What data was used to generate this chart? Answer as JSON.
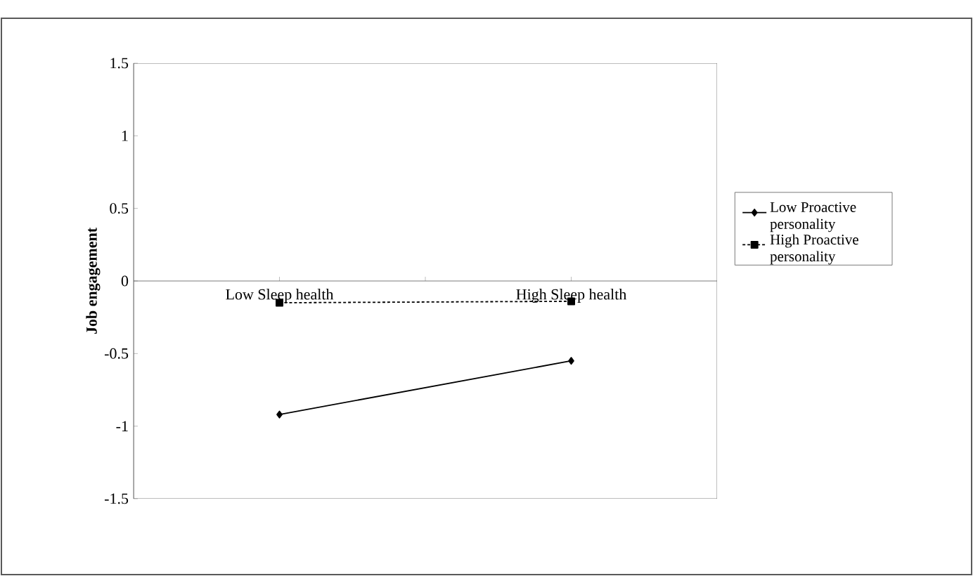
{
  "chart_data": {
    "type": "line",
    "ylabel": "Job engagement",
    "categories": [
      "Low Sleep health",
      "High Sleep health"
    ],
    "series": [
      {
        "name": "Low Proactive personality",
        "color": "#000000",
        "marker": "diamond",
        "line_style": "solid",
        "values": [
          -0.92,
          -0.55
        ]
      },
      {
        "name": "High Proactive personality",
        "color": "#000000",
        "marker": "square",
        "line_style": "dashed",
        "values": [
          -0.15,
          -0.14
        ]
      }
    ],
    "ylim": [
      -1.5,
      1.5
    ],
    "yticks": [
      -1.5,
      -1,
      -0.5,
      0,
      0.5,
      1,
      1.5
    ],
    "grid": false,
    "legend": "right"
  }
}
